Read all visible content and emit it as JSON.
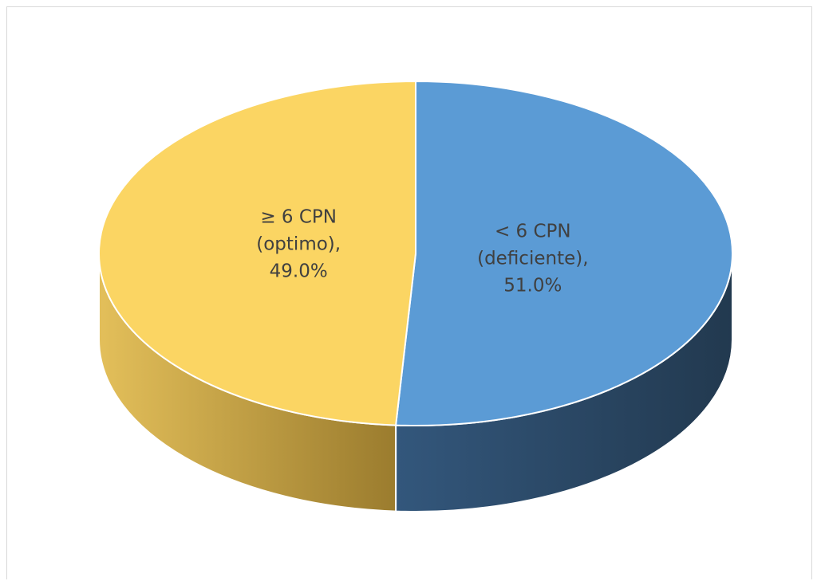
{
  "chart_data": {
    "type": "pie",
    "style": "3d",
    "title": "",
    "legend": "none",
    "slices": [
      {
        "label_lines": [
          "< 6 CPN",
          "(deficiente),",
          "51.0%"
        ],
        "category": "< 6 CPN (deficiente)",
        "value": 51.0,
        "unit": "%",
        "color": "#5b9bd5",
        "side_color": "#26405c"
      },
      {
        "label_lines": [
          "≥ 6 CPN",
          "(optimo),",
          "49.0%"
        ],
        "category": "≥ 6 CPN (optimo)",
        "value": 49.0,
        "unit": "%",
        "color": "#fbd563",
        "side_color": "#c9a33f"
      }
    ]
  }
}
